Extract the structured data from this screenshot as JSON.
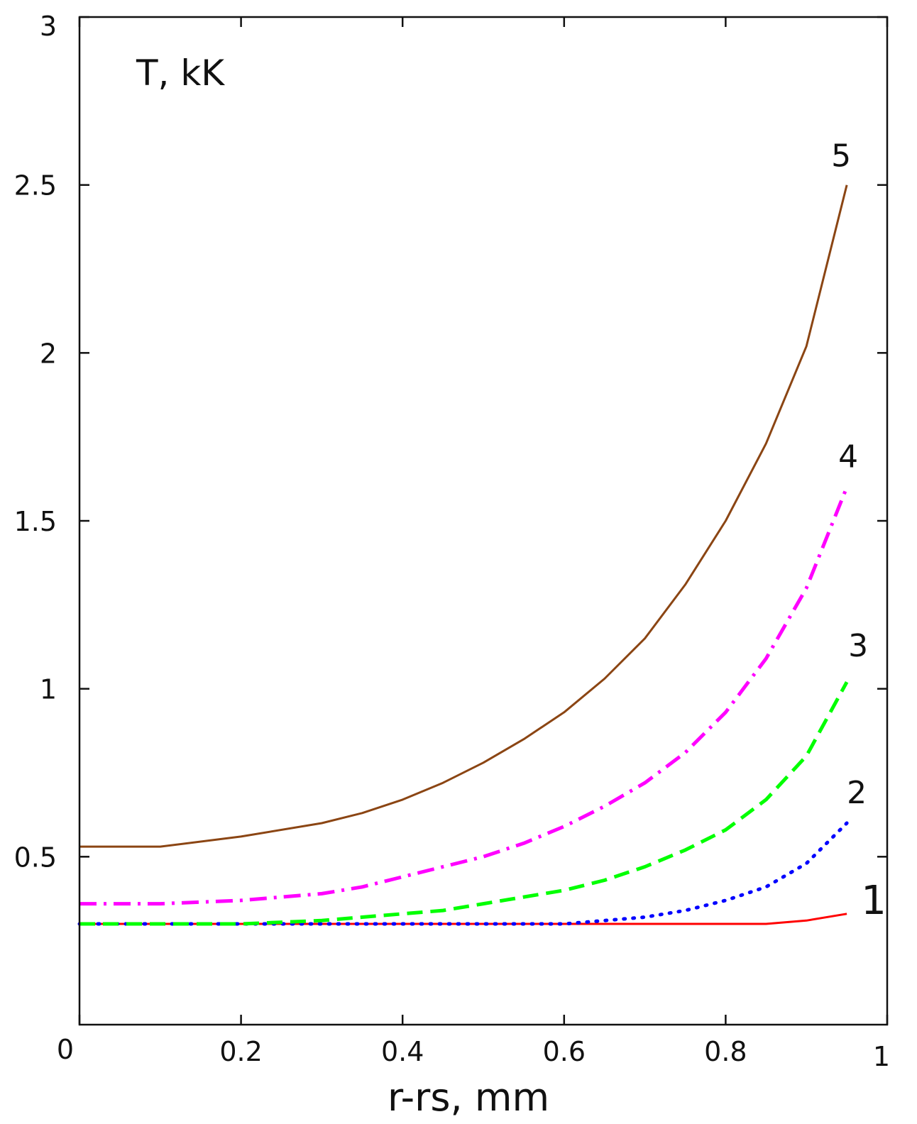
{
  "chart_data": {
    "type": "line",
    "title": "",
    "xlabel": "r-rs, mm",
    "ylabel": "T, kK",
    "xlim": [
      0,
      1
    ],
    "ylim": [
      0,
      3
    ],
    "x_ticks": [
      "0",
      "0.2",
      "0.4",
      "0.6",
      "0.8",
      "1"
    ],
    "y_ticks": [
      "0.5",
      "1",
      "1.5",
      "2",
      "2.5",
      "3"
    ],
    "grid": false,
    "legend": "none",
    "series": [
      {
        "name": "1",
        "color": "#ff0000",
        "style": "solid",
        "x": [
          0,
          0.1,
          0.2,
          0.3,
          0.4,
          0.5,
          0.6,
          0.7,
          0.8,
          0.85,
          0.9,
          0.95
        ],
        "y": [
          0.3,
          0.3,
          0.3,
          0.3,
          0.3,
          0.3,
          0.3,
          0.3,
          0.3,
          0.3,
          0.31,
          0.33
        ]
      },
      {
        "name": "2",
        "color": "#0000ff",
        "style": "dotted",
        "x": [
          0,
          0.1,
          0.2,
          0.3,
          0.4,
          0.5,
          0.6,
          0.65,
          0.7,
          0.75,
          0.8,
          0.85,
          0.9,
          0.95
        ],
        "y": [
          0.3,
          0.3,
          0.3,
          0.3,
          0.3,
          0.3,
          0.3,
          0.31,
          0.32,
          0.34,
          0.37,
          0.41,
          0.48,
          0.6
        ]
      },
      {
        "name": "3",
        "color": "#00ff00",
        "style": "dashed",
        "x": [
          0,
          0.1,
          0.2,
          0.3,
          0.35,
          0.4,
          0.45,
          0.5,
          0.55,
          0.6,
          0.65,
          0.7,
          0.75,
          0.8,
          0.85,
          0.9,
          0.95
        ],
        "y": [
          0.3,
          0.3,
          0.3,
          0.31,
          0.32,
          0.33,
          0.34,
          0.36,
          0.38,
          0.4,
          0.43,
          0.47,
          0.52,
          0.58,
          0.67,
          0.8,
          1.02
        ]
      },
      {
        "name": "4",
        "color": "#ff00ff",
        "style": "dashdot",
        "x": [
          0,
          0.1,
          0.2,
          0.3,
          0.35,
          0.4,
          0.45,
          0.5,
          0.55,
          0.6,
          0.65,
          0.7,
          0.75,
          0.8,
          0.85,
          0.9,
          0.95
        ],
        "y": [
          0.36,
          0.36,
          0.37,
          0.39,
          0.41,
          0.44,
          0.47,
          0.5,
          0.54,
          0.59,
          0.65,
          0.72,
          0.81,
          0.93,
          1.09,
          1.3,
          1.6
        ]
      },
      {
        "name": "5",
        "color": "#8b4513",
        "style": "solid",
        "x": [
          0,
          0.05,
          0.1,
          0.2,
          0.3,
          0.35,
          0.4,
          0.45,
          0.5,
          0.55,
          0.6,
          0.65,
          0.7,
          0.75,
          0.8,
          0.85,
          0.9,
          0.95
        ],
        "y": [
          0.53,
          0.53,
          0.53,
          0.56,
          0.6,
          0.63,
          0.67,
          0.72,
          0.78,
          0.85,
          0.93,
          1.03,
          1.15,
          1.31,
          1.5,
          1.73,
          2.02,
          2.5
        ]
      }
    ]
  }
}
